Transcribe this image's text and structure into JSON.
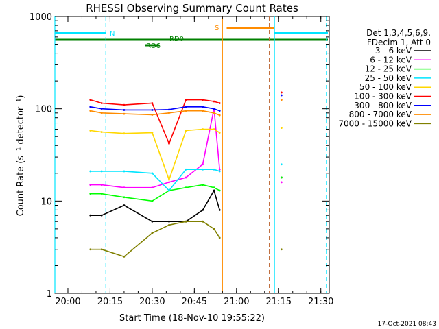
{
  "chart_data": {
    "type": "line",
    "title": "RHESSI Observing Summary Count Rates",
    "xlabel": "Start Time (18-Nov-10 19:55:22)",
    "ylabel": "Count Rate (s⁻¹ detector⁻¹)",
    "y_scale": "log",
    "ylim": [
      1,
      1000
    ],
    "xlim": [
      "19:55:22",
      "21:33:00"
    ],
    "grid": false,
    "legend_placement": "right",
    "legend_header": [
      "Det 1,3,4,5,6,9,",
      "FDecim 1, Att 0"
    ],
    "x_ticks": [
      "20:00",
      "20:15",
      "20:30",
      "20:45",
      "21:00",
      "21:15",
      "21:30"
    ],
    "y_ticks": [
      "1",
      "10",
      "100",
      "1000"
    ],
    "footer": "17-Oct-2021 08:43",
    "flags": [
      {
        "label": "N",
        "color": "#00e5ff",
        "intervals": [
          [
            "19:55:22",
            "20:13:30"
          ],
          [
            "21:13:30",
            "21:32:30"
          ]
        ]
      },
      {
        "label": "S",
        "color": "#ff8c00",
        "intervals": [
          [
            "20:56:30",
            "21:13:30"
          ]
        ]
      },
      {
        "label": "RD0",
        "color": "#008000",
        "intervals": [
          [
            "19:55:22",
            "21:32:30"
          ]
        ]
      },
      {
        "label": "RD6",
        "color": "#008000",
        "intervals": [
          [
            "20:27:30",
            "20:32:30"
          ]
        ]
      }
    ],
    "markers": [
      {
        "time": "19:55:22",
        "color": "#00e5ff",
        "style": "solid"
      },
      {
        "time": "20:13:30",
        "color": "#00e5ff",
        "style": "dashed"
      },
      {
        "time": "20:55:00",
        "color": "#ff8c00",
        "style": "solid"
      },
      {
        "time": "21:11:40",
        "color": "#c07040",
        "style": "dashed"
      },
      {
        "time": "21:13:30",
        "color": "#00e5ff",
        "style": "solid"
      },
      {
        "time": "21:32:00",
        "color": "#00e5ff",
        "style": "dashed"
      }
    ],
    "x": [
      "20:08",
      "20:12",
      "20:20",
      "20:30",
      "20:36",
      "20:42",
      "20:48",
      "20:52",
      "20:54",
      "21:14",
      "21:16"
    ],
    "series": [
      {
        "name": "3 - 6 keV",
        "color": "#000000",
        "values": [
          7,
          7,
          9,
          6,
          6,
          6,
          8,
          13,
          8,
          null,
          18
        ]
      },
      {
        "name": "6 - 12 keV",
        "color": "#ff00ff",
        "values": [
          15,
          15,
          14,
          14,
          16,
          18,
          25,
          100,
          22,
          null,
          16
        ]
      },
      {
        "name": "12 - 25 keV",
        "color": "#00ff00",
        "values": [
          12,
          12,
          11,
          10,
          13,
          14,
          15,
          14,
          13,
          null,
          18
        ]
      },
      {
        "name": "25 - 50 keV",
        "color": "#00e5ff",
        "values": [
          21,
          21,
          21,
          20,
          13,
          22,
          22,
          22,
          21,
          null,
          25
        ]
      },
      {
        "name": "50 - 100 keV",
        "color": "#ffd700",
        "values": [
          58,
          56,
          54,
          55,
          17,
          58,
          60,
          60,
          55,
          null,
          62
        ]
      },
      {
        "name": "100 - 300 keV",
        "color": "#ff0000",
        "values": [
          125,
          115,
          110,
          115,
          42,
          125,
          125,
          120,
          115,
          null,
          150
        ]
      },
      {
        "name": "300 - 800 keV",
        "color": "#0000ff",
        "values": [
          105,
          100,
          97,
          97,
          98,
          105,
          105,
          100,
          95,
          null,
          140
        ]
      },
      {
        "name": "800 - 7000 keV",
        "color": "#ff8c00",
        "values": [
          95,
          90,
          88,
          86,
          90,
          95,
          95,
          90,
          85,
          null,
          125
        ]
      },
      {
        "name": "7000 - 15000 keV",
        "color": "#808000",
        "values": [
          3,
          3,
          2.5,
          4.5,
          5.5,
          6,
          6,
          5,
          4,
          null,
          3
        ]
      }
    ]
  }
}
